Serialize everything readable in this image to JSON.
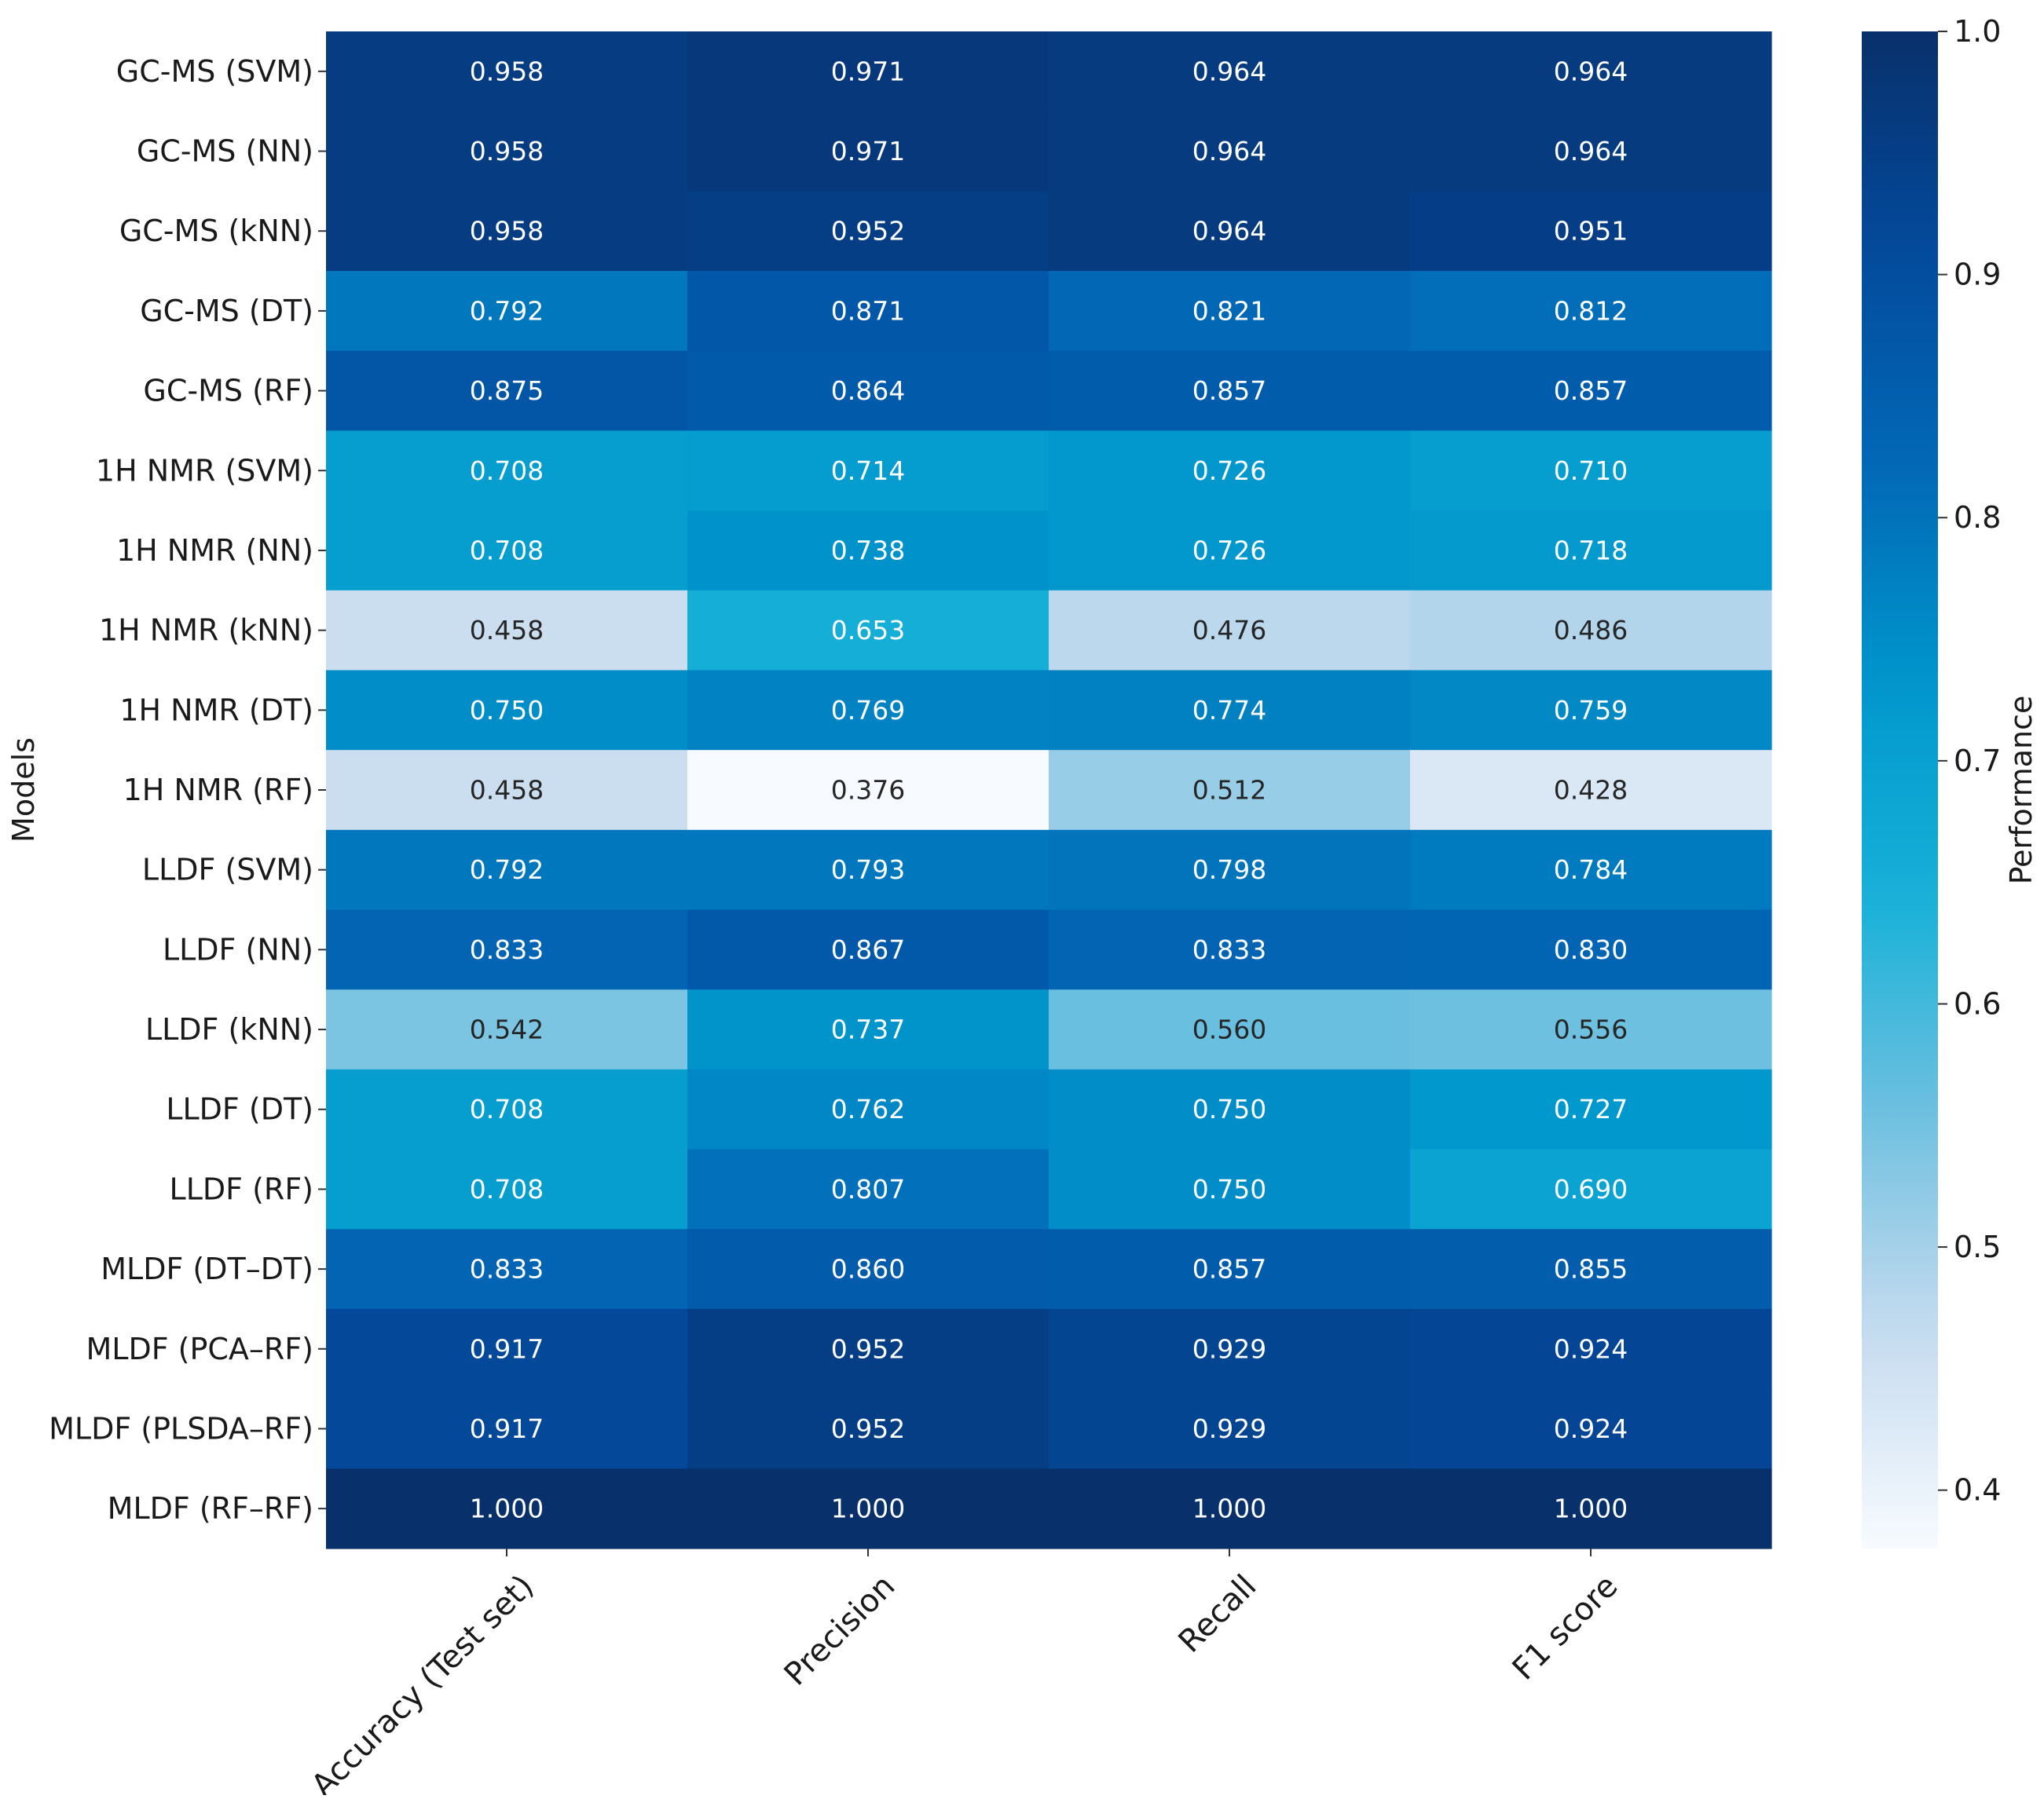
{
  "chart_data": {
    "type": "heatmap",
    "title": "",
    "xlabel": "",
    "ylabel": "Models",
    "colorbar_label": "Performance",
    "colorbar_range": [
      0.376,
      1.0
    ],
    "colorbar_ticks": [
      "0.4",
      "0.5",
      "0.6",
      "0.7",
      "0.8",
      "0.9",
      "1.0"
    ],
    "colorbar_tick_values": [
      0.4,
      0.5,
      0.6,
      0.7,
      0.8,
      0.9,
      1.0
    ],
    "colormap": [
      "#f7fbff",
      "#c6dbef",
      "#6fc0e0",
      "#17b1d8",
      "#0096cc",
      "#0268b6",
      "#034a9c",
      "#08306b"
    ],
    "value_format": "3 decimals",
    "columns": [
      "Accuracy (Test set)",
      "Precision",
      "Recall",
      "F1 score"
    ],
    "rows": [
      "GC-MS (SVM)",
      "GC-MS (NN)",
      "GC-MS (kNN)",
      "GC-MS (DT)",
      "GC-MS (RF)",
      "1H NMR (SVM)",
      "1H NMR (NN)",
      "1H NMR (kNN)",
      "1H NMR (DT)",
      "1H NMR (RF)",
      "LLDF (SVM)",
      "LLDF (NN)",
      "LLDF (kNN)",
      "LLDF (DT)",
      "LLDF (RF)",
      "MLDF (DT–DT)",
      "MLDF (PCA–RF)",
      "MLDF (PLSDA–RF)",
      "MLDF (RF–RF)"
    ],
    "values": [
      [
        0.958,
        0.971,
        0.964,
        0.964
      ],
      [
        0.958,
        0.971,
        0.964,
        0.964
      ],
      [
        0.958,
        0.952,
        0.964,
        0.951
      ],
      [
        0.792,
        0.871,
        0.821,
        0.812
      ],
      [
        0.875,
        0.864,
        0.857,
        0.857
      ],
      [
        0.708,
        0.714,
        0.726,
        0.71
      ],
      [
        0.708,
        0.738,
        0.726,
        0.718
      ],
      [
        0.458,
        0.653,
        0.476,
        0.486
      ],
      [
        0.75,
        0.769,
        0.774,
        0.759
      ],
      [
        0.458,
        0.376,
        0.512,
        0.428
      ],
      [
        0.792,
        0.793,
        0.798,
        0.784
      ],
      [
        0.833,
        0.867,
        0.833,
        0.83
      ],
      [
        0.542,
        0.737,
        0.56,
        0.556
      ],
      [
        0.708,
        0.762,
        0.75,
        0.727
      ],
      [
        0.708,
        0.807,
        0.75,
        0.69
      ],
      [
        0.833,
        0.86,
        0.857,
        0.855
      ],
      [
        0.917,
        0.952,
        0.929,
        0.924
      ],
      [
        0.917,
        0.952,
        0.929,
        0.924
      ],
      [
        1.0,
        1.0,
        1.0,
        1.0
      ]
    ]
  }
}
